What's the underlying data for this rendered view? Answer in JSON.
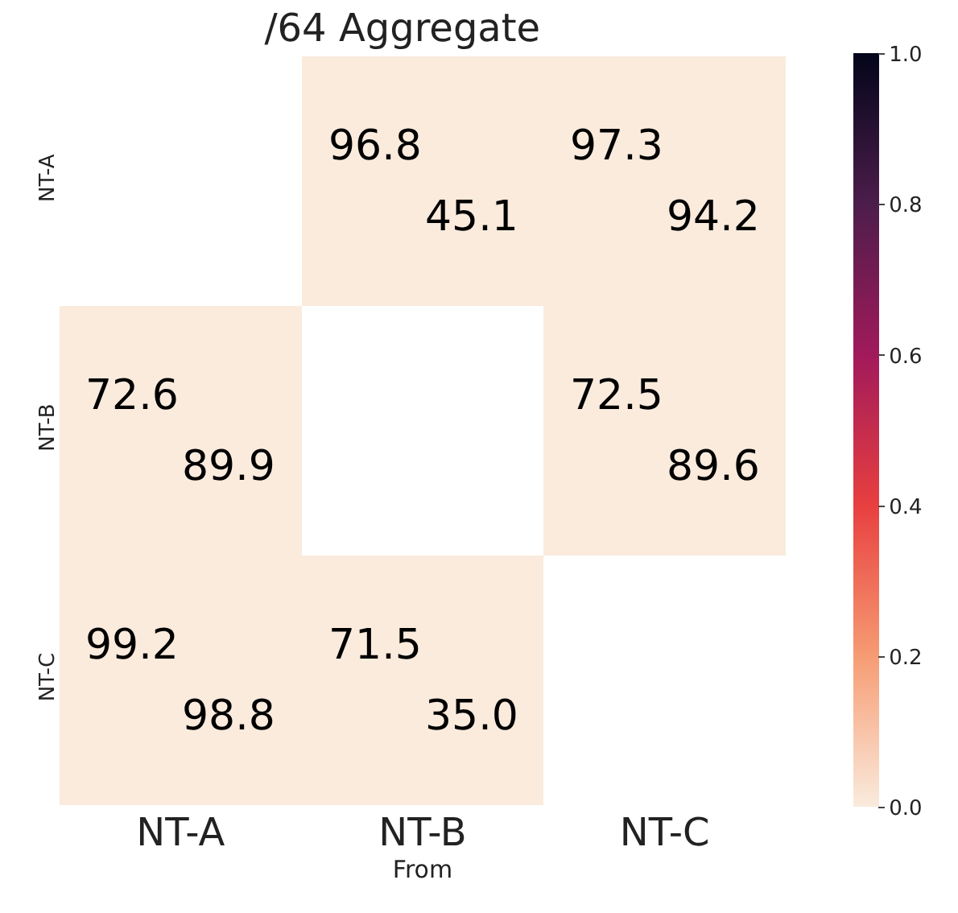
{
  "chart_data": {
    "type": "heatmap",
    "title": "/64 Aggregate",
    "xlabel": "From",
    "categories": [
      "NT-A",
      "NT-B",
      "NT-C"
    ],
    "y_categories": [
      "NT-A",
      "NT-B",
      "NT-C"
    ],
    "cells": [
      [
        null,
        0.0,
        0.0
      ],
      [
        0.0,
        null,
        0.0
      ],
      [
        0.0,
        0.0,
        null
      ]
    ],
    "cell_labels": [
      [
        null,
        "96.8\n45.1",
        "97.3\n94.2"
      ],
      [
        "72.6\n89.9",
        null,
        "72.5\n89.6"
      ],
      [
        "99.2\n98.8",
        "71.5\n35.0",
        null
      ]
    ],
    "clim": [
      0,
      1
    ],
    "cticks": [
      {
        "value": 0,
        "label": "0.0"
      },
      {
        "value": 0.2,
        "label": "0.2"
      },
      {
        "value": 0.4,
        "label": "0.4"
      },
      {
        "value": 0.6,
        "label": "0.6"
      },
      {
        "value": 0.8,
        "label": "0.8"
      },
      {
        "value": 1,
        "label": "1.0"
      }
    ]
  }
}
